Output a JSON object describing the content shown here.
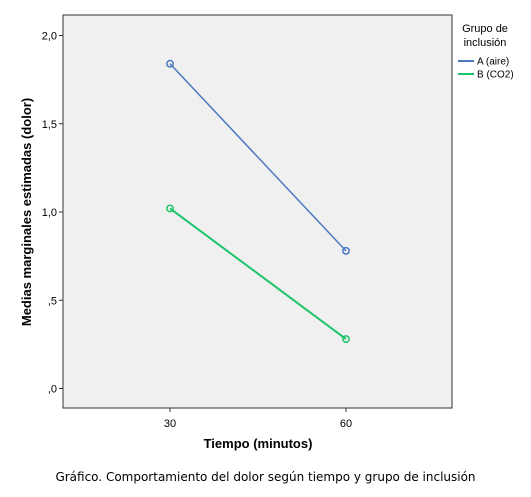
{
  "caption": "Gráfico. Comportamiento del dolor según tiempo y grupo de inclusión",
  "chart_data": {
    "type": "line",
    "x": [
      "30",
      "60"
    ],
    "xlabel": "Tiempo (minutos)",
    "ylabel": "Medias marginales estimadas (dolor)",
    "ylim": [
      0,
      2.1
    ],
    "yticks": [
      0,
      0.5,
      1.0,
      1.5,
      2.0
    ],
    "ytick_labels": [
      ",0",
      ",5",
      "1,0",
      "1,5",
      "2,0"
    ],
    "grid": false,
    "legend": {
      "title_lines": [
        "Grupo de",
        "inclusión"
      ],
      "placement": "right"
    },
    "series": [
      {
        "name": "A (aire)",
        "color": "#4a78c0",
        "values": [
          1.84,
          0.78
        ]
      },
      {
        "name": "B (CO2)",
        "color": "#1dc56a",
        "values": [
          1.02,
          0.28
        ]
      }
    ]
  }
}
